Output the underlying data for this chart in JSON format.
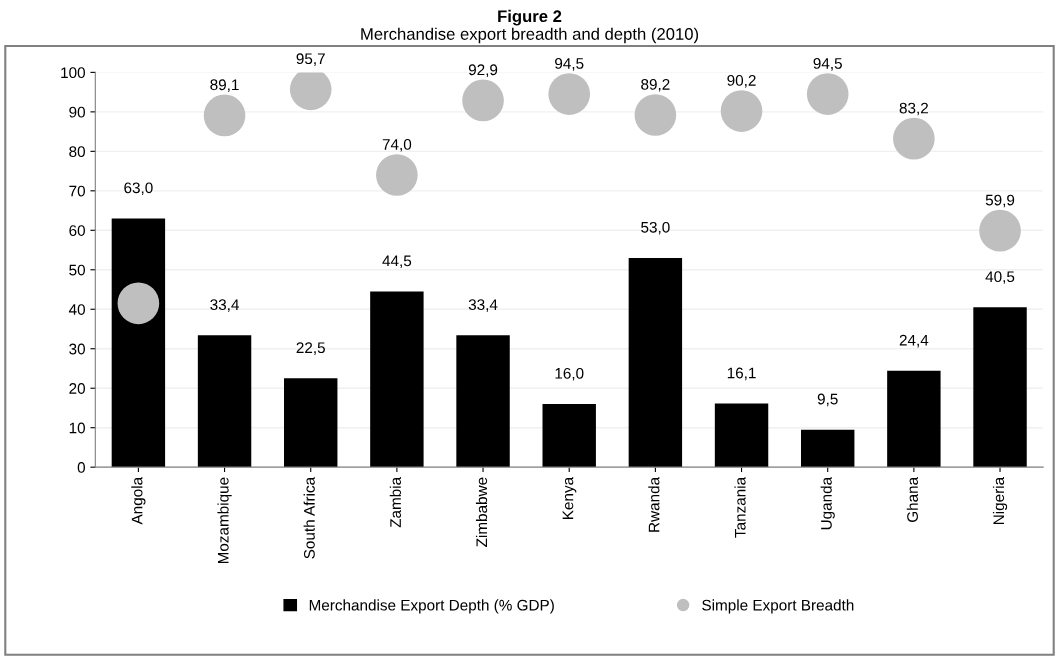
{
  "chart_data": {
    "type": "bar",
    "title": "Figure 2",
    "subtitle": "Merchandise export breadth and depth (2010)",
    "categories": [
      "Angola",
      "Mozambique",
      "South Africa",
      "Zambia",
      "Zimbabwe",
      "Kenya",
      "Rwanda",
      "Tanzania",
      "Uganda",
      "Ghana",
      "Nigeria"
    ],
    "series": [
      {
        "name": "Merchandise Export Depth (% GDP)",
        "color": "#000000",
        "values": [
          63.0,
          33.4,
          22.5,
          44.5,
          33.4,
          16.0,
          53.0,
          16.1,
          9.5,
          24.4,
          40.5
        ],
        "value_labels": [
          "63,0",
          "33,4",
          "22,5",
          "44,5",
          "33,4",
          "16,0",
          "53,0",
          "16,1",
          "9,5",
          "24,4",
          "40,5"
        ]
      },
      {
        "name": "Simple Export Breadth",
        "type": "scatter",
        "marker": "circle",
        "color": "#bfbfbf",
        "x": [
          "Angola",
          "Mozambique",
          "South Africa",
          "Zambia",
          "Zimbabwe",
          "Kenya",
          "Rwanda",
          "Tanzania",
          "Uganda",
          "Ghana",
          "Nigeria"
        ],
        "values": [
          41.5,
          89.1,
          95.7,
          74.0,
          92.9,
          94.5,
          89.2,
          90.2,
          94.5,
          83.2,
          59.9
        ],
        "value_labels": [
          null,
          "89,1",
          "95,7",
          "74,0",
          "92,9",
          "94,5",
          "89,2",
          "90,2",
          "94,5",
          "83,2",
          "59,9"
        ]
      }
    ],
    "ylim": [
      0,
      100
    ],
    "yticks": [
      0,
      10,
      20,
      30,
      40,
      50,
      60,
      70,
      80,
      90,
      100
    ],
    "grid": "y",
    "legend": "bottom"
  }
}
